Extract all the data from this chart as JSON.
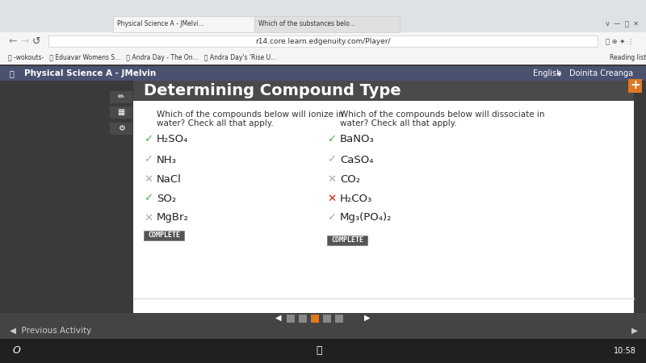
{
  "title": "Determining Compound Type",
  "title_bg": "#4a4a4a",
  "title_color": "#ffffff",
  "title_fontsize": 14,
  "content_bg": "#ffffff",
  "outer_bg": "#3a3a3a",
  "left_question": "Which of the compounds below will ionize in\nwater? Check all that apply.",
  "right_question": "Which of the compounds below will dissociate in\nwater? Check all that apply.",
  "left_items": [
    {
      "symbol": "H₂SO₄",
      "icon": "check_green"
    },
    {
      "symbol": "NH₃",
      "icon": "check_gray"
    },
    {
      "symbol": "NaCl",
      "icon": "x_gray"
    },
    {
      "symbol": "SO₂",
      "icon": "check_green"
    },
    {
      "symbol": "MgBr₂",
      "icon": "x_gray"
    }
  ],
  "right_items": [
    {
      "symbol": "BaNO₃",
      "icon": "check_green"
    },
    {
      "symbol": "CaSO₄",
      "icon": "check_gray"
    },
    {
      "symbol": "CO₂",
      "icon": "x_gray"
    },
    {
      "symbol": "H₂CO₃",
      "icon": "x_red"
    },
    {
      "symbol": "Mg₃(PO₄)₂",
      "icon": "check_gray"
    }
  ],
  "complete_label": "COMPLETE",
  "complete_bg": "#555555",
  "complete_text_color": "#ffffff",
  "complete_fontsize": 6,
  "question_fontsize": 7.5,
  "item_fontsize": 9.5,
  "check_green": "#4caf50",
  "check_gray": "#aaaaaa",
  "x_gray": "#aaaaaa",
  "x_red": "#cc2200",
  "nav_bar_color": "#555555",
  "nav_dot_orange": "#e07820",
  "nav_dot_gray": "#888888",
  "toolbar_bg": "#4a4a4a",
  "plus_color": "#e07820",
  "header_bg": "#4a5568",
  "browser_bg": "#f0f0f0",
  "tabbar_bg": "#e0e0e0",
  "sidebar_bg": "#3a3a3a",
  "bottom_bar_bg": "#444444",
  "prev_activity_bg": "#3a3a3a"
}
